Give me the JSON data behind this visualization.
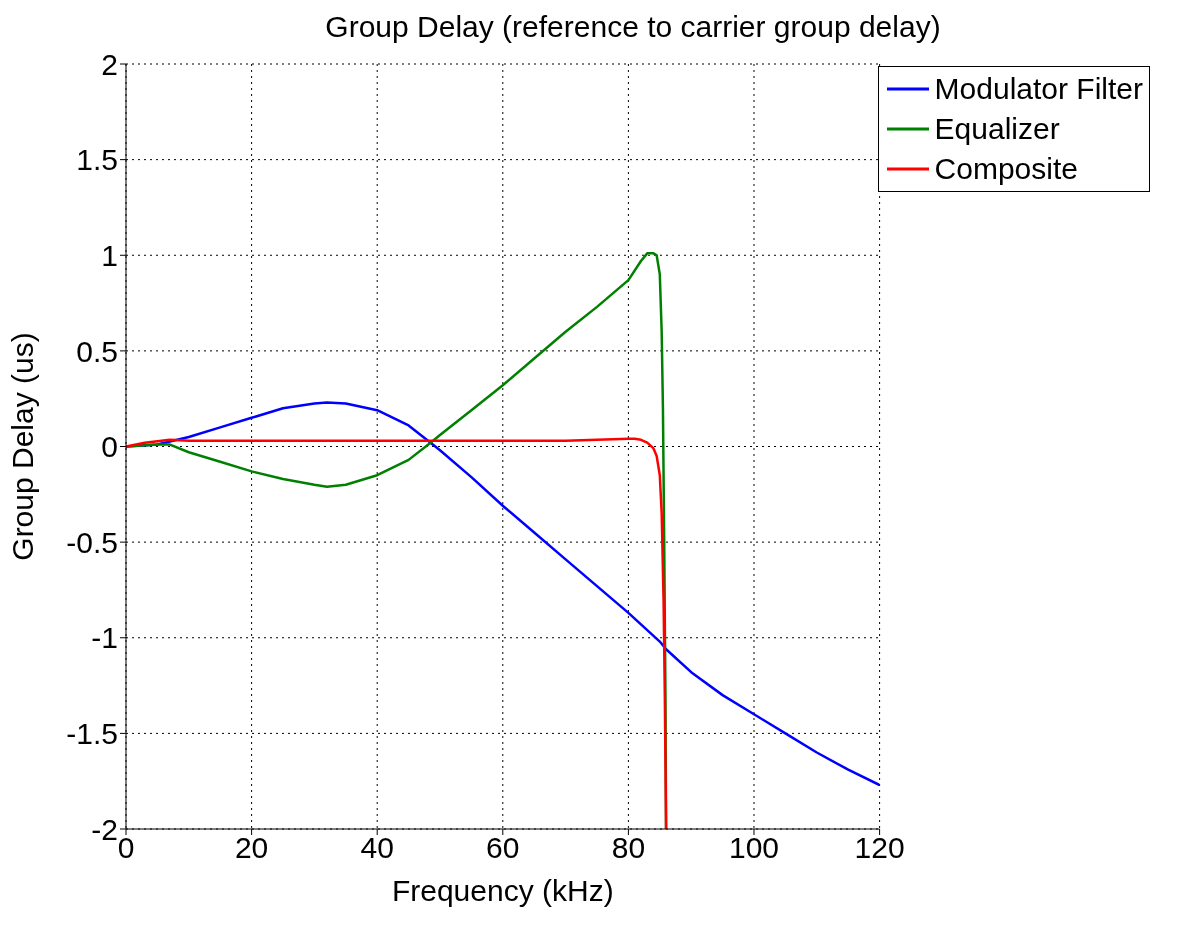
{
  "chart_data": {
    "type": "line",
    "title": "Group Delay (reference to carrier group delay)",
    "xlabel": "Frequency (kHz)",
    "ylabel": "Group Delay (us)",
    "xlim": [
      0,
      120
    ],
    "ylim": [
      -2,
      2
    ],
    "xticks": [
      0,
      20,
      40,
      60,
      80,
      100,
      120
    ],
    "yticks": [
      -2,
      -1.5,
      -1,
      -0.5,
      0,
      0.5,
      1,
      1.5,
      2
    ],
    "grid": true,
    "legend": "top right",
    "series": [
      {
        "name": "Modulator Filter",
        "color": "#0000ff",
        "x": [
          0,
          5,
          10,
          15,
          20,
          25,
          30,
          32,
          35,
          40,
          45,
          48.5,
          50,
          55,
          60,
          65,
          70,
          75,
          80,
          85,
          86,
          90,
          95,
          100,
          105,
          110,
          115,
          120
        ],
        "values": [
          0,
          0.01,
          0.05,
          0.1,
          0.15,
          0.2,
          0.225,
          0.23,
          0.225,
          0.19,
          0.11,
          0.02,
          -0.02,
          -0.16,
          -0.31,
          -0.45,
          -0.59,
          -0.73,
          -0.87,
          -1.02,
          -1.06,
          -1.18,
          -1.3,
          -1.4,
          -1.5,
          -1.6,
          -1.69,
          -1.77
        ]
      },
      {
        "name": "Equalizer",
        "color": "#008000",
        "x": [
          0,
          5,
          7,
          10,
          15,
          20,
          25,
          30,
          32,
          35,
          40,
          45,
          48.5,
          50,
          55,
          60,
          65,
          70,
          75,
          80,
          82,
          83,
          84,
          84.5,
          85,
          85.3,
          85.5,
          85.7,
          85.9,
          86
        ],
        "values": [
          0,
          0.01,
          0.01,
          -0.03,
          -0.08,
          -0.13,
          -0.17,
          -0.2,
          -0.21,
          -0.2,
          -0.15,
          -0.07,
          0.02,
          0.06,
          0.19,
          0.32,
          0.46,
          0.6,
          0.73,
          0.87,
          0.97,
          1.01,
          1.01,
          1.0,
          0.9,
          0.6,
          0.2,
          -0.5,
          -1.3,
          -2
        ]
      },
      {
        "name": "Composite",
        "color": "#ff0000",
        "x": [
          0,
          3,
          7,
          10,
          20,
          30,
          40,
          50,
          60,
          70,
          80,
          81,
          82,
          83,
          84,
          84.5,
          85,
          85.3,
          85.6,
          85.8,
          86
        ],
        "values": [
          0,
          0.02,
          0.035,
          0.03,
          0.03,
          0.03,
          0.03,
          0.03,
          0.03,
          0.03,
          0.04,
          0.04,
          0.035,
          0.02,
          -0.01,
          -0.05,
          -0.15,
          -0.35,
          -0.8,
          -1.3,
          -2
        ]
      }
    ]
  }
}
